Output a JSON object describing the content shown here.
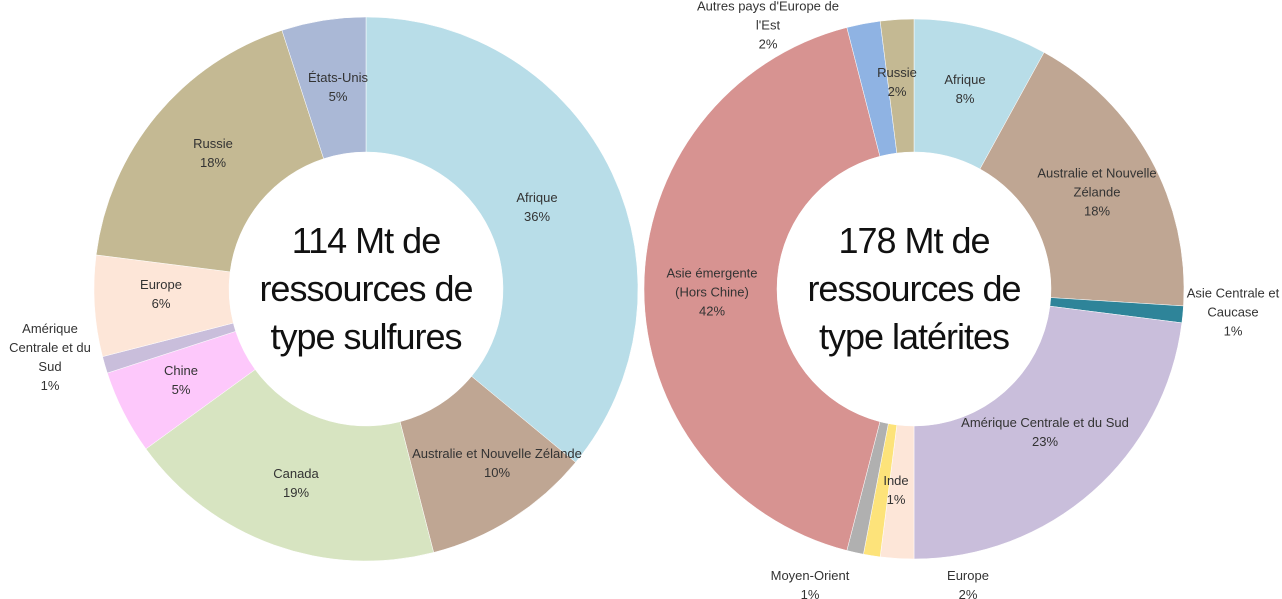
{
  "chart_data": [
    {
      "type": "donut",
      "title": "114 Mt de ressources de type sulfures",
      "categories": [
        "Afrique",
        "Australie et Nouvelle Zélande",
        "Canada",
        "Chine",
        "Amérique Centrale et du Sud",
        "Europe",
        "Russie",
        "États-Unis"
      ],
      "values": [
        36,
        10,
        19,
        5,
        1,
        6,
        18,
        5
      ],
      "value_labels": [
        "36%",
        "10%",
        "19%",
        "5%",
        "1%",
        "6%",
        "18%",
        "5%"
      ],
      "colors": [
        "#b8dde8",
        "#bfa693",
        "#d7e4c1",
        "#fdc8fb",
        "#c9bedb",
        "#fde6d8",
        "#c4b993",
        "#aab8d6"
      ]
    },
    {
      "type": "donut",
      "title": "178 Mt de ressources de type latérites",
      "categories": [
        "Afrique",
        "Australie et Nouvelle Zélande",
        "Asie Centrale et Caucase",
        "Amérique Centrale et du Sud",
        "Europe",
        "Inde",
        "Moyen-Orient",
        "Asie émergente (Hors Chine)",
        "Autres pays d'Europe de l'Est",
        "Russie"
      ],
      "values": [
        8,
        18,
        1,
        23,
        2,
        1,
        1,
        42,
        2,
        2
      ],
      "value_labels": [
        "8%",
        "18%",
        "1%",
        "23%",
        "2%",
        "1%",
        "1%",
        "42%",
        "2%",
        "2%"
      ],
      "colors": [
        "#b8dde8",
        "#bfa693",
        "#2e8499",
        "#c9bedb",
        "#fde6d8",
        "#fde37a",
        "#b0b0b0",
        "#d79391",
        "#8fb3e3",
        "#c4b993"
      ]
    }
  ]
}
